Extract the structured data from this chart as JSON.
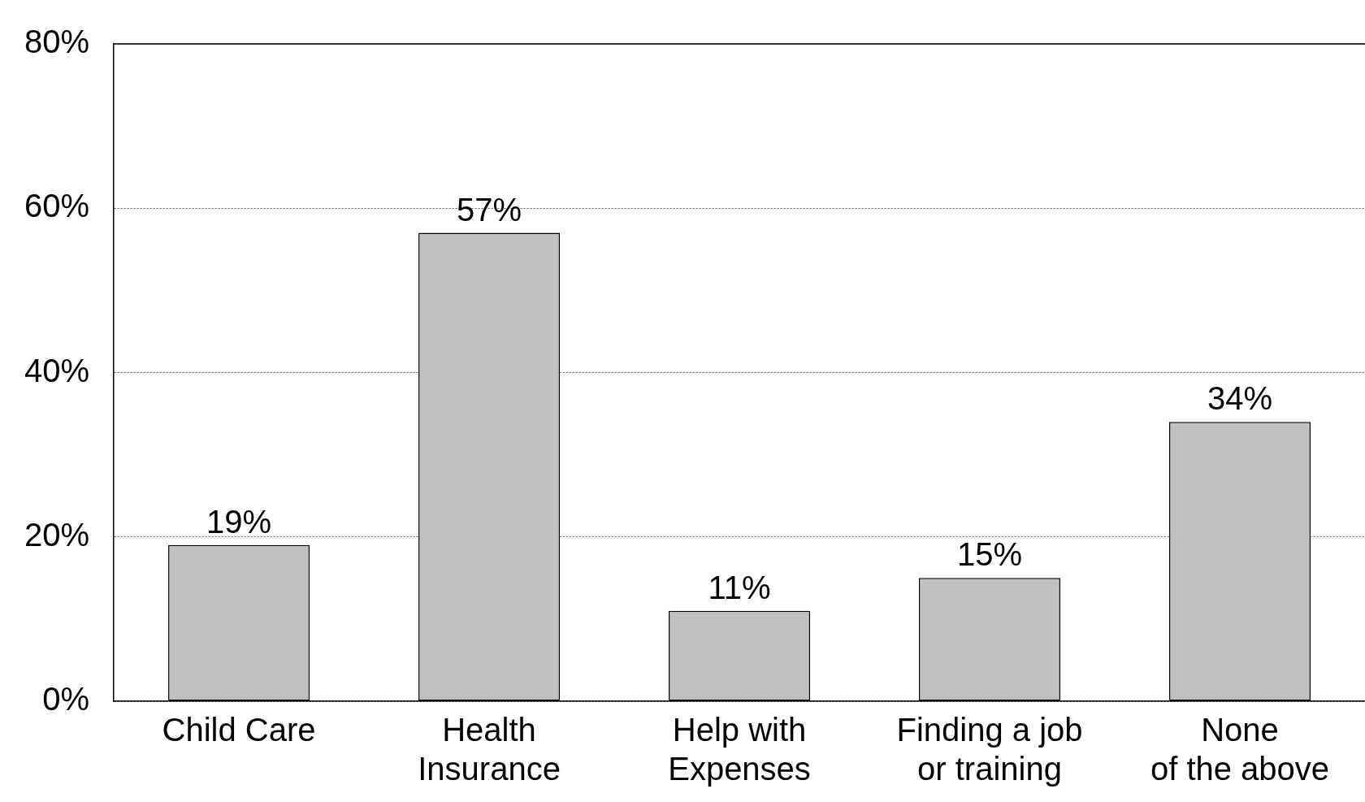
{
  "chart_data": {
    "type": "bar",
    "categories": [
      "Child Care",
      "Health\nInsurance",
      "Help with\nExpenses",
      "Finding a job\nor training",
      "None\nof the above"
    ],
    "values": [
      19,
      57,
      11,
      15,
      34
    ],
    "color": "#c0c0c0",
    "ylim": [
      0,
      80
    ],
    "yticks": [
      {
        "value": 0,
        "label": "0%"
      },
      {
        "value": 20,
        "label": "20%"
      },
      {
        "value": 40,
        "label": "40%"
      },
      {
        "value": 60,
        "label": "60%"
      },
      {
        "value": 80,
        "label": "80%"
      }
    ],
    "grid": "y",
    "value_labels": [
      "19%",
      "57%",
      "11%",
      "15%",
      "34%"
    ]
  }
}
